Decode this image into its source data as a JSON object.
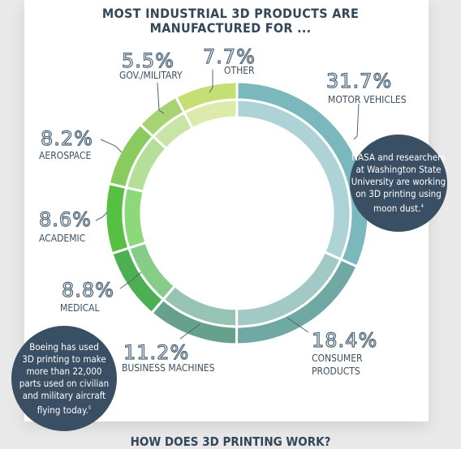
{
  "title_lines": [
    "MOST INDUSTRIAL 3D PRODUCTS ARE",
    "MANUFACTURED FOR ..."
  ],
  "chart_data": {
    "type": "pie",
    "donut": true,
    "title": "MOST INDUSTRIAL 3D PRODUCTS ARE MANUFACTURED FOR ...",
    "slices": [
      {
        "label": "MOTOR VEHICLES",
        "value_label": "31.7%",
        "value": 31.7,
        "color": "#7ab8bd",
        "inner_color": "#aed3d6"
      },
      {
        "label": "CONSUMER PRODUCTS",
        "value_label": "18.4%",
        "value": 18.4,
        "color": "#70a9a4",
        "inner_color": "#a3c9c6"
      },
      {
        "label": "BUSINESS MACHINES",
        "value_label": "11.2%",
        "value": 11.2,
        "color": "#65a18c",
        "inner_color": "#97c3b2"
      },
      {
        "label": "MEDICAL",
        "value_label": "8.8%",
        "value": 8.8,
        "color": "#4caf52",
        "inner_color": "#86cd89"
      },
      {
        "label": "ACADEMIC",
        "value_label": "8.6%",
        "value": 8.6,
        "color": "#55c042",
        "inner_color": "#8cd97c"
      },
      {
        "label": "AEROSPACE",
        "value_label": "8.2%",
        "value": 8.2,
        "color": "#8acb5f",
        "inner_color": "#b5de99"
      },
      {
        "label": "GOV./MILITARY",
        "value_label": "5.5%",
        "value": 5.5,
        "color": "#a7d373",
        "inner_color": "#c8e4a6"
      },
      {
        "label": "OTHER",
        "value_label": "7.7%",
        "value": 7.7,
        "color": "#c6df75",
        "inner_color": "#dcebab"
      }
    ]
  },
  "bubbles": {
    "nasa": {
      "lines": [
        "NASA and researchers",
        "at Washington State",
        "University are working",
        "on 3D printing using",
        "moon dust."
      ],
      "footnote": "4"
    },
    "boeing": {
      "lines": [
        "Boeing has used",
        "3D printing to make",
        "more than 22,000",
        "parts used on civilian",
        "and military aircraft",
        "flying today."
      ],
      "footnote": "5"
    }
  },
  "footer_text": "HOW DOES 3D PRINTING WORK?"
}
